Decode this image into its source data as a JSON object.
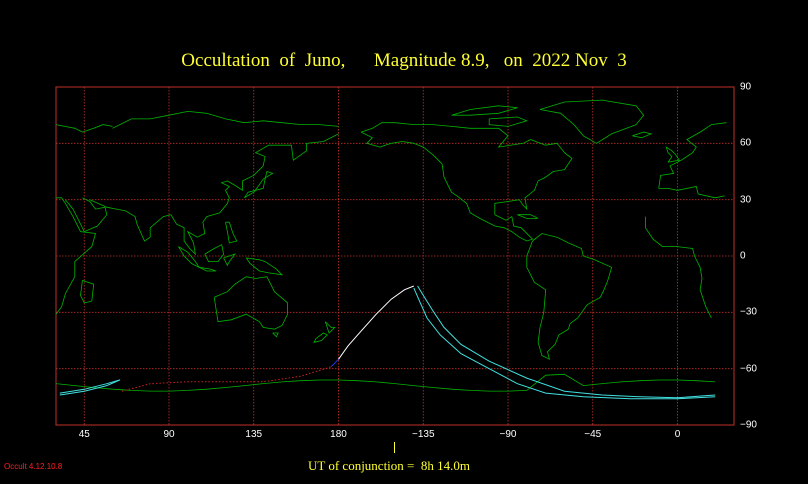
{
  "title": "Occultation  of  Juno,      Magnitude 8.9,   on  2022 Nov  3",
  "lon_ticks": [
    "45",
    "90",
    "135",
    "180",
    "−135",
    "−90",
    "−45",
    "0"
  ],
  "lat_ticks": [
    "90",
    "60",
    "30",
    "0",
    "−30",
    "−60",
    "−90"
  ],
  "conjunction_label": "UT of conjunction =  8h 14.0m",
  "version_label": "Occult 4.12.10.8",
  "colors": {
    "background": "#000000",
    "grid": "#c0302a",
    "coastline": "#00b400",
    "central_line": "#ffffff",
    "limit_lines": "#40e0e0",
    "night_path": "#d02020",
    "twilight_path": "#2040ff",
    "text": "#ffff33"
  }
}
